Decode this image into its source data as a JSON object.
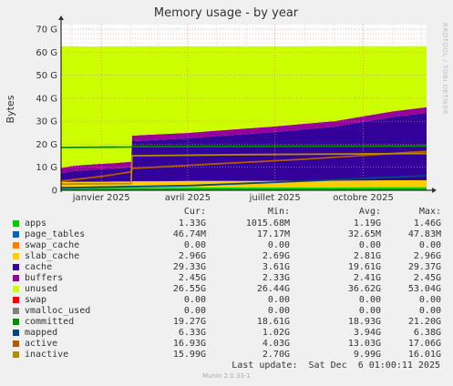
{
  "chart_data": {
    "type": "area",
    "title": "Memory usage - by year",
    "ylabel": "Bytes",
    "watermark": "RRDTOOL / TOBI OETIKER",
    "ylim": [
      0,
      72
    ],
    "y_unit": "G",
    "y_ticks": [
      {
        "value": 0,
        "label": "0"
      },
      {
        "value": 10,
        "label": "10 G"
      },
      {
        "value": 20,
        "label": "20 G"
      },
      {
        "value": 30,
        "label": "30 G"
      },
      {
        "value": 40,
        "label": "40 G"
      },
      {
        "value": 50,
        "label": "50 G"
      },
      {
        "value": 60,
        "label": "60 G"
      },
      {
        "value": 70,
        "label": "70 G"
      }
    ],
    "x_range": [
      "2024-11-20",
      "2025-12-06"
    ],
    "x_ticks": [
      {
        "date": "2025-01-01",
        "label": "janvier 2025"
      },
      {
        "date": "2025-04-01",
        "label": "avril 2025"
      },
      {
        "date": "2025-07-01",
        "label": "juillet 2025"
      },
      {
        "date": "2025-10-01",
        "label": "octobre 2025"
      }
    ],
    "stack_dates": [
      "2024-11-20",
      "2024-12-01",
      "2024-12-15",
      "2025-01-01",
      "2025-01-15",
      "2025-02-01",
      "2025-02-02",
      "2025-03-01",
      "2025-04-01",
      "2025-05-01",
      "2025-06-01",
      "2025-07-01",
      "2025-08-01",
      "2025-09-01",
      "2025-10-01",
      "2025-11-01",
      "2025-12-06"
    ],
    "stacked_series": [
      {
        "name": "apps",
        "color": "#00cc00",
        "values": [
          1.0,
          1.0,
          1.0,
          1.0,
          1.1,
          1.1,
          1.1,
          1.1,
          1.2,
          1.2,
          1.2,
          1.2,
          1.2,
          1.2,
          1.3,
          1.3,
          1.3
        ]
      },
      {
        "name": "page_tables",
        "color": "#0066b3",
        "values": [
          0.02,
          0.02,
          0.02,
          0.02,
          0.02,
          0.02,
          0.03,
          0.03,
          0.03,
          0.03,
          0.03,
          0.03,
          0.03,
          0.04,
          0.04,
          0.05,
          0.05
        ]
      },
      {
        "name": "swap_cache",
        "color": "#ff8000",
        "values": [
          0,
          0,
          0,
          0,
          0,
          0,
          0,
          0,
          0,
          0,
          0,
          0,
          0,
          0,
          0,
          0,
          0
        ]
      },
      {
        "name": "slab_cache",
        "color": "#ffcc00",
        "values": [
          2.7,
          2.7,
          2.7,
          2.7,
          2.7,
          2.7,
          2.8,
          2.8,
          2.8,
          2.8,
          2.8,
          2.8,
          2.9,
          2.9,
          2.9,
          3.0,
          3.0
        ]
      },
      {
        "name": "cache",
        "color": "#330099",
        "values": [
          3.6,
          4.5,
          5.0,
          5.5,
          5.6,
          6.2,
          17.4,
          18.0,
          18.5,
          19.5,
          20.4,
          21.3,
          22.4,
          23.5,
          25.5,
          27.5,
          29.3
        ]
      },
      {
        "name": "buffers",
        "color": "#990099",
        "values": [
          2.3,
          2.3,
          2.3,
          2.3,
          2.4,
          2.4,
          2.4,
          2.4,
          2.4,
          2.4,
          2.4,
          2.4,
          2.4,
          2.4,
          2.4,
          2.45,
          2.45
        ]
      },
      {
        "name": "unused",
        "color": "#ccff00",
        "values": [
          53.04,
          52.1,
          51.5,
          51.0,
          50.8,
          50.2,
          38.9,
          38.3,
          37.7,
          36.7,
          35.8,
          34.9,
          33.7,
          32.6,
          30.5,
          28.3,
          26.55
        ]
      },
      {
        "name": "swap",
        "color": "#ff0000",
        "values": [
          0,
          0,
          0,
          0,
          0,
          0,
          0,
          0,
          0,
          0,
          0,
          0,
          0,
          0,
          0,
          0,
          0
        ]
      }
    ],
    "line_series": [
      {
        "name": "committed",
        "color": "#008f00",
        "dates": [
          "2024-11-20",
          "2025-02-01",
          "2025-02-02",
          "2025-12-06"
        ],
        "values": [
          18.6,
          18.8,
          19.0,
          19.27
        ]
      },
      {
        "name": "mapped",
        "color": "#00487d",
        "dates": [
          "2024-11-20",
          "2025-04-01",
          "2025-08-01",
          "2025-12-06"
        ],
        "values": [
          1.1,
          2.0,
          4.0,
          6.33
        ]
      },
      {
        "name": "active",
        "color": "#b35a00",
        "dates": [
          "2024-11-20",
          "2025-01-01",
          "2025-02-01",
          "2025-02-02",
          "2025-05-01",
          "2025-08-01",
          "2025-12-06"
        ],
        "values": [
          4.0,
          6.0,
          8.0,
          9.5,
          11.5,
          13.5,
          16.93
        ]
      },
      {
        "name": "inactive",
        "color": "#b38f00",
        "dates": [
          "2024-11-20",
          "2025-02-01",
          "2025-02-02",
          "2025-06-01",
          "2025-12-06"
        ],
        "values": [
          2.7,
          2.9,
          15.0,
          15.5,
          15.99
        ]
      }
    ]
  },
  "legend": {
    "headers": {
      "cur": "Cur:",
      "min": "Min:",
      "avg": "Avg:",
      "max": "Max:"
    },
    "rows": [
      {
        "name": "apps",
        "color": "#00cc00",
        "cur": "1.33G",
        "min": "1015.68M",
        "avg": "1.19G",
        "max": "1.46G"
      },
      {
        "name": "page_tables",
        "color": "#0066b3",
        "cur": "46.74M",
        "min": "17.17M",
        "avg": "32.65M",
        "max": "47.83M"
      },
      {
        "name": "swap_cache",
        "color": "#ff8000",
        "cur": "0.00",
        "min": "0.00",
        "avg": "0.00",
        "max": "0.00"
      },
      {
        "name": "slab_cache",
        "color": "#ffcc00",
        "cur": "2.96G",
        "min": "2.69G",
        "avg": "2.81G",
        "max": "2.96G"
      },
      {
        "name": "cache",
        "color": "#330099",
        "cur": "29.33G",
        "min": "3.61G",
        "avg": "19.61G",
        "max": "29.37G"
      },
      {
        "name": "buffers",
        "color": "#990099",
        "cur": "2.45G",
        "min": "2.33G",
        "avg": "2.41G",
        "max": "2.45G"
      },
      {
        "name": "unused",
        "color": "#ccff00",
        "cur": "26.55G",
        "min": "26.44G",
        "avg": "36.62G",
        "max": "53.04G"
      },
      {
        "name": "swap",
        "color": "#ff0000",
        "cur": "0.00",
        "min": "0.00",
        "avg": "0.00",
        "max": "0.00"
      },
      {
        "name": "vmalloc_used",
        "color": "#808080",
        "cur": "0.00",
        "min": "0.00",
        "avg": "0.00",
        "max": "0.00"
      },
      {
        "name": "committed",
        "color": "#008f00",
        "cur": "19.27G",
        "min": "18.61G",
        "avg": "18.93G",
        "max": "21.20G"
      },
      {
        "name": "mapped",
        "color": "#00487d",
        "cur": "6.33G",
        "min": "1.02G",
        "avg": "3.94G",
        "max": "6.38G"
      },
      {
        "name": "active",
        "color": "#b35a00",
        "cur": "16.93G",
        "min": "4.03G",
        "avg": "13.03G",
        "max": "17.06G"
      },
      {
        "name": "inactive",
        "color": "#b38f00",
        "cur": "15.99G",
        "min": "2.70G",
        "avg": "9.99G",
        "max": "16.01G"
      }
    ]
  },
  "footer": {
    "last_update": "Last update:  Sat Dec  6 01:00:11 2025",
    "version": "Munin 2.0.33-1"
  }
}
